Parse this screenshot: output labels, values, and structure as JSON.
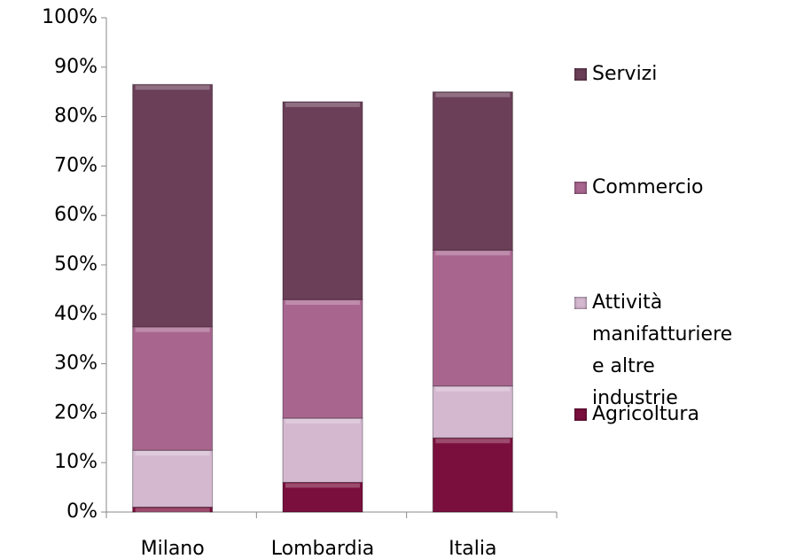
{
  "chart_data": {
    "type": "stacked_bar",
    "categories": [
      "Milano",
      "Lombardia",
      "Italia"
    ],
    "series": [
      {
        "name": "Agricoltura",
        "color": "#7a0f3d",
        "values": [
          1,
          6,
          15
        ]
      },
      {
        "name": "Attività manifatturiere e altre industrie",
        "color": "#d4b8d0",
        "values": [
          11.5,
          13,
          10.5
        ]
      },
      {
        "name": "Commercio",
        "color": "#a8668f",
        "values": [
          25,
          24,
          27.5
        ]
      },
      {
        "name": "Servizi",
        "color": "#6b3f58",
        "values": [
          49,
          40,
          32
        ]
      }
    ],
    "ylim": [
      0,
      100
    ],
    "yticks": [
      {
        "value": 0,
        "label": "0%"
      },
      {
        "value": 10,
        "label": "10%"
      },
      {
        "value": 20,
        "label": "20%"
      },
      {
        "value": 30,
        "label": "30%"
      },
      {
        "value": 40,
        "label": "40%"
      },
      {
        "value": 50,
        "label": "50%"
      },
      {
        "value": 60,
        "label": "60%"
      },
      {
        "value": 70,
        "label": "70%"
      },
      {
        "value": 80,
        "label": "80%"
      },
      {
        "value": 90,
        "label": "90%"
      },
      {
        "value": 100,
        "label": "100%"
      }
    ],
    "legend": "right"
  }
}
